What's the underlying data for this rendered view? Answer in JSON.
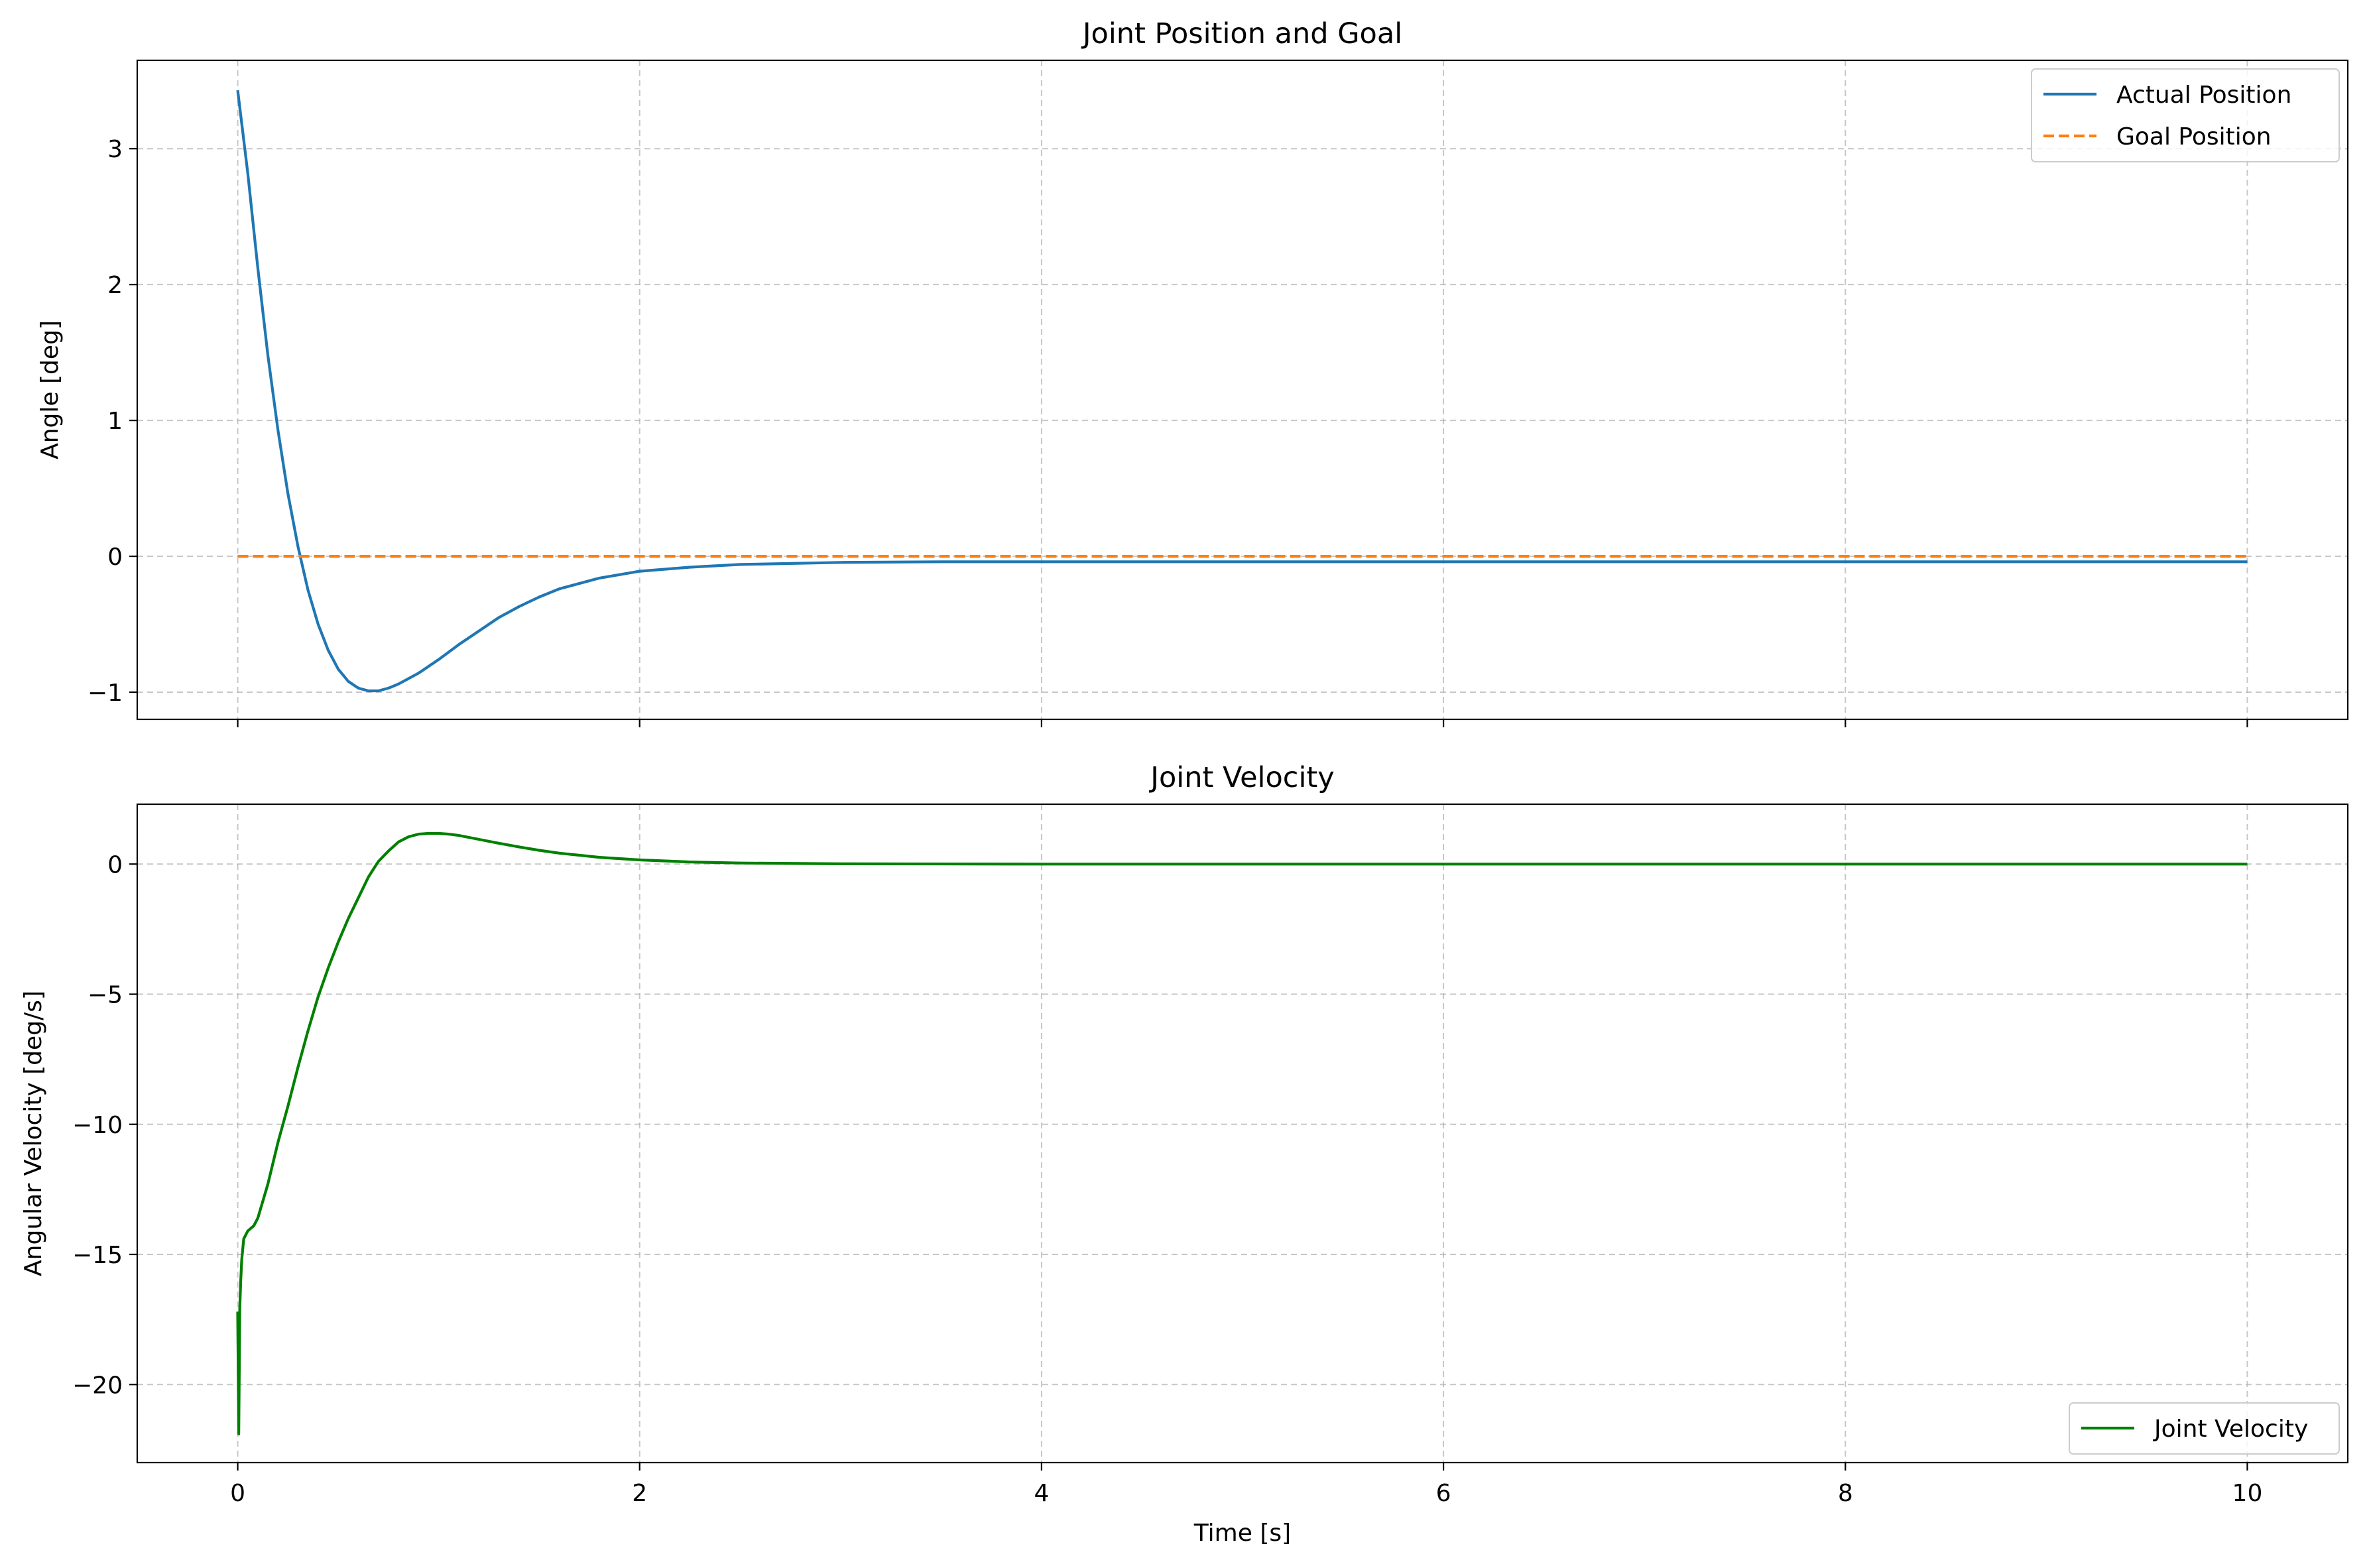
{
  "chart_data": [
    {
      "type": "line",
      "title": "Joint Position and Goal",
      "xlabel": "",
      "ylabel": "Angle [deg]",
      "xlim": [
        -0.5,
        10.5
      ],
      "ylim": [
        -1.2,
        3.65
      ],
      "xticks": [
        0,
        2,
        4,
        6,
        8,
        10
      ],
      "xtick_labels": [
        "",
        "",
        "",
        "",
        "",
        ""
      ],
      "yticks": [
        -1,
        0,
        1,
        2,
        3
      ],
      "ytick_labels": [
        "−1",
        "0",
        "1",
        "2",
        "3"
      ],
      "grid": true,
      "legend_position": "top-right",
      "series": [
        {
          "name": "Actual Position",
          "color": "#1f77b4",
          "style": "solid",
          "x": [
            0,
            0.05,
            0.1,
            0.15,
            0.2,
            0.25,
            0.3,
            0.35,
            0.4,
            0.45,
            0.5,
            0.55,
            0.6,
            0.65,
            0.7,
            0.75,
            0.8,
            0.9,
            1.0,
            1.1,
            1.2,
            1.3,
            1.4,
            1.5,
            1.6,
            1.8,
            2.0,
            2.25,
            2.5,
            3.0,
            3.5,
            4,
            6,
            8,
            10
          ],
          "y": [
            3.43,
            2.82,
            2.12,
            1.48,
            0.93,
            0.46,
            0.07,
            -0.25,
            -0.5,
            -0.69,
            -0.83,
            -0.92,
            -0.97,
            -0.99,
            -0.99,
            -0.97,
            -0.94,
            -0.86,
            -0.76,
            -0.65,
            -0.55,
            -0.45,
            -0.37,
            -0.3,
            -0.24,
            -0.16,
            -0.11,
            -0.08,
            -0.06,
            -0.045,
            -0.04,
            -0.04,
            -0.04,
            -0.04,
            -0.04
          ]
        },
        {
          "name": "Goal Position",
          "color": "#ff7f0e",
          "style": "dashed",
          "x": [
            0,
            10
          ],
          "y": [
            0,
            0
          ]
        }
      ]
    },
    {
      "type": "line",
      "title": "Joint Velocity",
      "xlabel": "Time [s]",
      "ylabel": "Angular Velocity [deg/s]",
      "xlim": [
        -0.5,
        10.5
      ],
      "ylim": [
        -23,
        2.3
      ],
      "xticks": [
        0,
        2,
        4,
        6,
        8,
        10
      ],
      "xtick_labels": [
        "0",
        "2",
        "4",
        "6",
        "8",
        "10"
      ],
      "yticks": [
        -20,
        -15,
        -10,
        -5,
        0
      ],
      "ytick_labels": [
        "−20",
        "−15",
        "−10",
        "−5",
        "0"
      ],
      "grid": true,
      "legend_position": "bottom-right",
      "series": [
        {
          "name": "Joint Velocity",
          "color": "#008000",
          "style": "solid",
          "x": [
            0,
            0.005,
            0.01,
            0.015,
            0.02,
            0.03,
            0.05,
            0.08,
            0.1,
            0.15,
            0.2,
            0.25,
            0.3,
            0.35,
            0.4,
            0.45,
            0.5,
            0.55,
            0.6,
            0.65,
            0.7,
            0.75,
            0.8,
            0.85,
            0.9,
            0.95,
            1.0,
            1.05,
            1.1,
            1.2,
            1.3,
            1.4,
            1.5,
            1.6,
            1.8,
            2.0,
            2.25,
            2.5,
            3,
            4,
            6,
            8,
            10
          ],
          "y": [
            -17.2,
            -21.9,
            -17.1,
            -16.0,
            -15.2,
            -14.4,
            -14.1,
            -13.9,
            -13.6,
            -12.3,
            -10.7,
            -9.3,
            -7.8,
            -6.4,
            -5.1,
            -4.0,
            -3.0,
            -2.1,
            -1.3,
            -0.5,
            0.1,
            0.5,
            0.85,
            1.05,
            1.15,
            1.18,
            1.18,
            1.15,
            1.1,
            0.95,
            0.8,
            0.66,
            0.53,
            0.42,
            0.26,
            0.16,
            0.08,
            0.04,
            0.01,
            0,
            0,
            0,
            0
          ]
        }
      ]
    }
  ]
}
